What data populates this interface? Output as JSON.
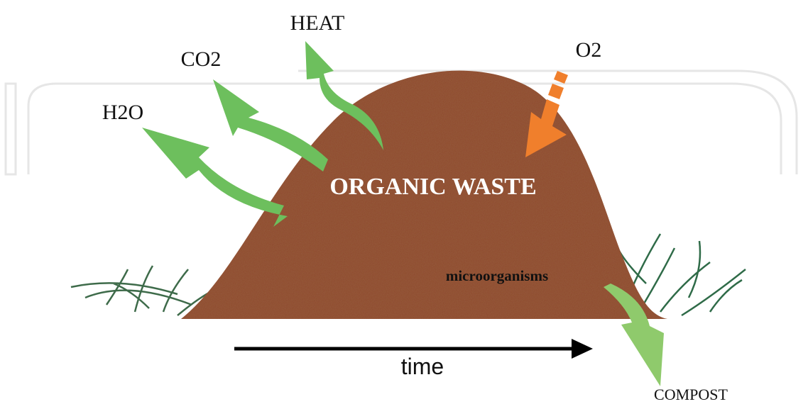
{
  "labels": {
    "heat": "HEAT",
    "co2": "CO2",
    "o2": "O2",
    "h2o": "H2O",
    "pile": "ORGANIC WASTE",
    "microbes": "microorganisms",
    "time": "time",
    "compost": "COMPOST"
  }
}
